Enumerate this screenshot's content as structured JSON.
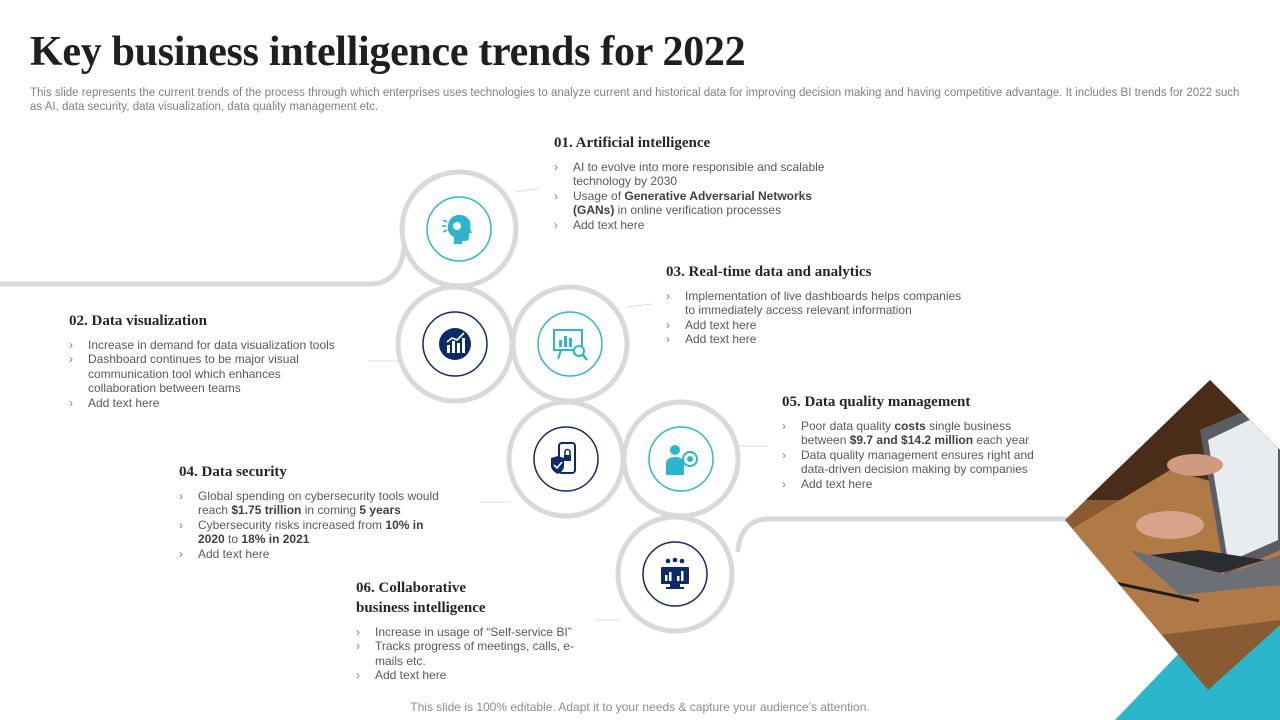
{
  "title": "Key business intelligence trends for 2022",
  "subtitle": "This slide represents the current trends of the process through which enterprises uses technologies to analyze current and historical data for improving decision making and having competitive advantage. It includes BI trends for 2022 such as AI,  data security, data visualization, data quality management etc.",
  "trends": [
    {
      "heading": "01. Artificial  intelligence",
      "icon": "ai-head-icon",
      "bullets": [
        [
          {
            "t": "AI to evolve into more responsible and scalable technology by 2030"
          }
        ],
        [
          {
            "t": "Usage of "
          },
          {
            "t": "Generative  Adversarial Networks (GANs)",
            "b": true
          },
          {
            "t": "  in online verification processes"
          }
        ],
        [
          {
            "t": "Add text here"
          }
        ]
      ]
    },
    {
      "heading": "02. Data visualization",
      "icon": "chart-visualization-icon",
      "bullets": [
        [
          {
            "t": "Increase in demand for data visualization tools"
          }
        ],
        [
          {
            "t": "Dashboard continues to be major visual communication tool which enhances collaboration between teams"
          }
        ],
        [
          {
            "t": "Add text here"
          }
        ]
      ]
    },
    {
      "heading": "03. Real-time data and analytics",
      "icon": "analytics-board-icon",
      "bullets": [
        [
          {
            "t": "Implementation of live dashboards helps companies to immediately access relevant information"
          }
        ],
        [
          {
            "t": "Add text here"
          }
        ],
        [
          {
            "t": "Add text here"
          }
        ]
      ]
    },
    {
      "heading": "04. Data security",
      "icon": "mobile-security-icon",
      "bullets": [
        [
          {
            "t": "Global spending on cybersecurity tools would reach "
          },
          {
            "t": "$1.75 trillion",
            "b": true
          },
          {
            "t": "  in coming "
          },
          {
            "t": "5 years",
            "b": true
          }
        ],
        [
          {
            "t": "Cybersecurity risks increased from "
          },
          {
            "t": "10% in 2020",
            "b": true
          },
          {
            "t": " to "
          },
          {
            "t": "18%  in 2021",
            "b": true
          }
        ],
        [
          {
            "t": "Add text here"
          }
        ]
      ]
    },
    {
      "heading": "05. Data quality  management",
      "icon": "quality-manager-icon",
      "bullets": [
        [
          {
            "t": "Poor data quality "
          },
          {
            "t": "costs",
            "b": true
          },
          {
            "t": " single business between "
          },
          {
            "t": "$9.7 and $14.2 million",
            "b": true
          },
          {
            "t": "  each year"
          }
        ],
        [
          {
            "t": "Data quality management ensures right and data-driven decision making by companies"
          }
        ],
        [
          {
            "t": "Add text here"
          }
        ]
      ]
    },
    {
      "heading": "06. Collaborative business intelligence",
      "icon": "collaborative-monitor-icon",
      "bullets": [
        [
          {
            "t": "Increase in usage of “Self-service BI”"
          }
        ],
        [
          {
            "t": "Tracks progress of meetings, calls, e-mails etc."
          }
        ],
        [
          {
            "t": "Add text here"
          }
        ]
      ]
    }
  ],
  "footer": "This slide is 100% editable. Adapt it to your needs & capture your audience’s attention.",
  "colors": {
    "teal": "#2bb6cc",
    "navy": "#0d2a6b",
    "ring": "#d9d9d9"
  }
}
